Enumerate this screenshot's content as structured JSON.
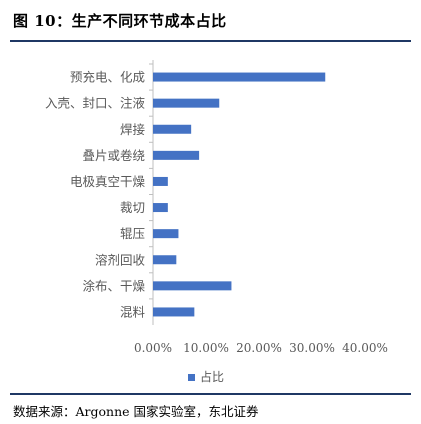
{
  "header": {
    "title": "图 10：生产不同环节成本占比"
  },
  "colors": {
    "bar": "#4472c4",
    "rule": "#1f3864",
    "axis": "#bfbfbf",
    "label": "#595959"
  },
  "chart_data": {
    "type": "bar",
    "orientation": "horizontal",
    "categories": [
      "预充电、化成",
      "入壳、封口、注液",
      "焊接",
      "叠片或卷绕",
      "电极真空干燥",
      "裁切",
      "辊压",
      "溶剂回收",
      "涂布、干燥",
      "混料"
    ],
    "series": [
      {
        "name": "占比",
        "values": [
          0.325,
          0.125,
          0.072,
          0.087,
          0.028,
          0.028,
          0.048,
          0.044,
          0.148,
          0.078
        ]
      }
    ],
    "xlim": [
      0,
      0.4
    ],
    "xticks": [
      0,
      0.1,
      0.2,
      0.3,
      0.4
    ],
    "xtick_labels": [
      "0.00%",
      "10.00%",
      "20.00%",
      "30.00%",
      "40.00%"
    ],
    "legend": "bottom-center",
    "grid": false
  },
  "footer": {
    "source": "数据来源：Argonne 国家实验室，东北证券"
  }
}
